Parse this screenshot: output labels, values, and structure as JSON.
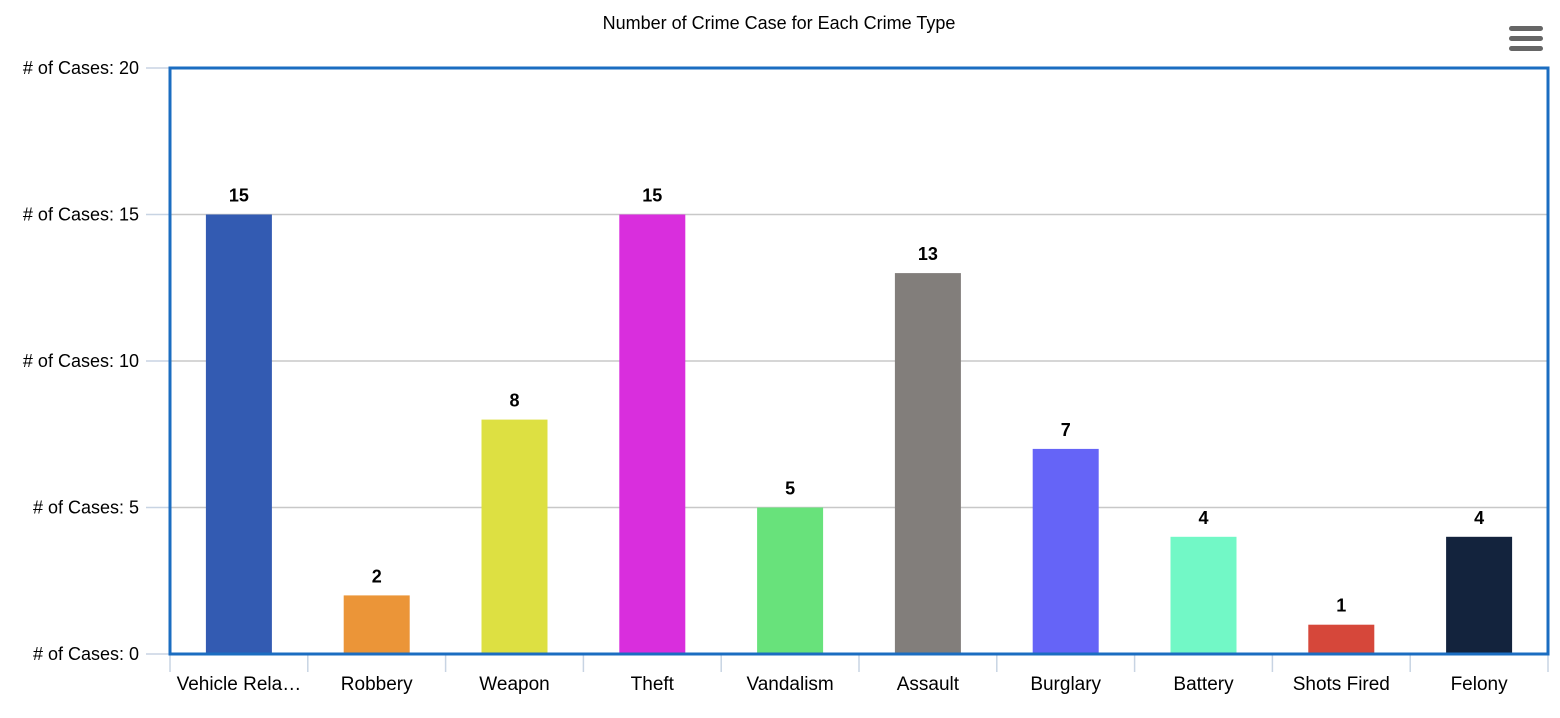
{
  "chart_data": {
    "type": "bar",
    "title": "Number of Crime Case for Each Crime Type",
    "xlabel": "",
    "ylabel": "",
    "y_tick_prefix": "# of Cases: ",
    "ylim": [
      0,
      20
    ],
    "y_ticks": [
      0,
      5,
      10,
      15,
      20
    ],
    "grid": true,
    "categories": [
      "Vehicle Rela…",
      "Robbery",
      "Weapon",
      "Theft",
      "Vandalism",
      "Assault",
      "Burglary",
      "Battery",
      "Shots Fired",
      "Felony"
    ],
    "values": [
      15,
      2,
      8,
      15,
      5,
      13,
      7,
      4,
      1,
      4
    ],
    "colors": [
      "#335BB2",
      "#EB9538",
      "#DDE042",
      "#D92EDD",
      "#68E27B",
      "#827E7B",
      "#6564F7",
      "#72F8C6",
      "#D6473A",
      "#13233D"
    ],
    "data_labels": [
      "15",
      "2",
      "8",
      "15",
      "5",
      "13",
      "7",
      "4",
      "1",
      "4"
    ]
  },
  "colors": {
    "plot_border": "#1B6DC1",
    "axis_line": "#C8D4E3",
    "menu_icon": "#666666"
  },
  "menu": {
    "icon": "hamburger-menu-icon"
  }
}
